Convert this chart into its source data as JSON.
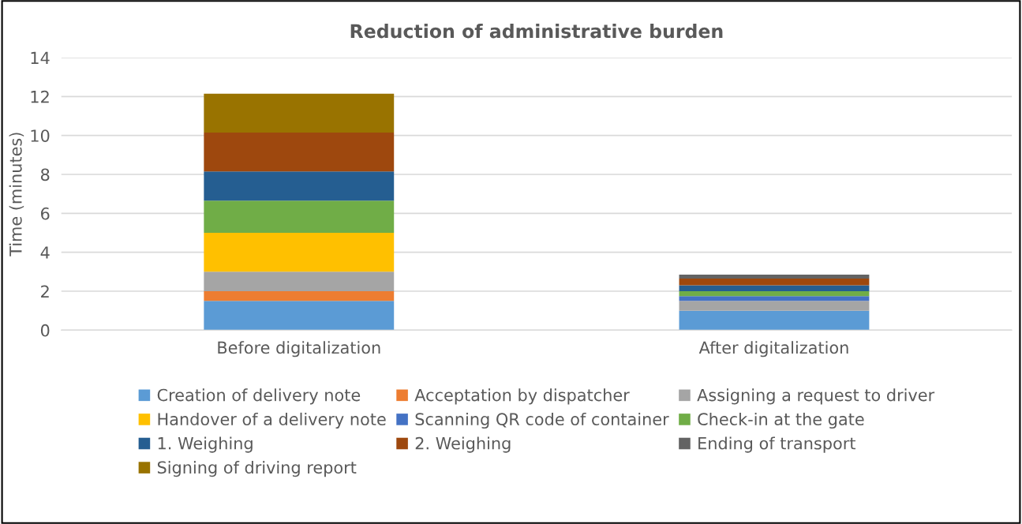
{
  "chart_data": {
    "type": "bar",
    "title": "Reduction of administrative burden",
    "ylabel": "Time (minutes)",
    "categories": [
      "Before digitalization",
      "After digitalization"
    ],
    "stacked": true,
    "ylim": [
      0,
      14
    ],
    "yticks": [
      0,
      2,
      4,
      6,
      8,
      10,
      12,
      14
    ],
    "grid": "y",
    "legend": "bottom",
    "series": [
      {
        "name": "Creation of delivery note",
        "color": "#5b9bd5",
        "values": [
          1.5,
          1.0
        ]
      },
      {
        "name": "Acceptation by dispatcher",
        "color": "#ed7d31",
        "values": [
          0.5,
          0
        ]
      },
      {
        "name": "Assigning a request to driver",
        "color": "#a5a5a5",
        "values": [
          1.0,
          0.5
        ]
      },
      {
        "name": "Handover of a delivery note",
        "color": "#ffc000",
        "values": [
          2.0,
          0
        ]
      },
      {
        "name": "Scanning QR code of container",
        "color": "#4472c4",
        "values": [
          0,
          0.25
        ]
      },
      {
        "name": "Check-in at the gate",
        "color": "#70ad47",
        "values": [
          1.65,
          0.25
        ]
      },
      {
        "name": "1. Weighing",
        "color": "#255e91",
        "values": [
          1.5,
          0.3
        ]
      },
      {
        "name": "2. Weighing",
        "color": "#9e480e",
        "values": [
          2.0,
          0.35
        ]
      },
      {
        "name": "Ending of transport",
        "color": "#636363",
        "values": [
          0,
          0.2
        ]
      },
      {
        "name": "Signing of driving report",
        "color": "#997300",
        "values": [
          2.0,
          0
        ]
      }
    ]
  }
}
